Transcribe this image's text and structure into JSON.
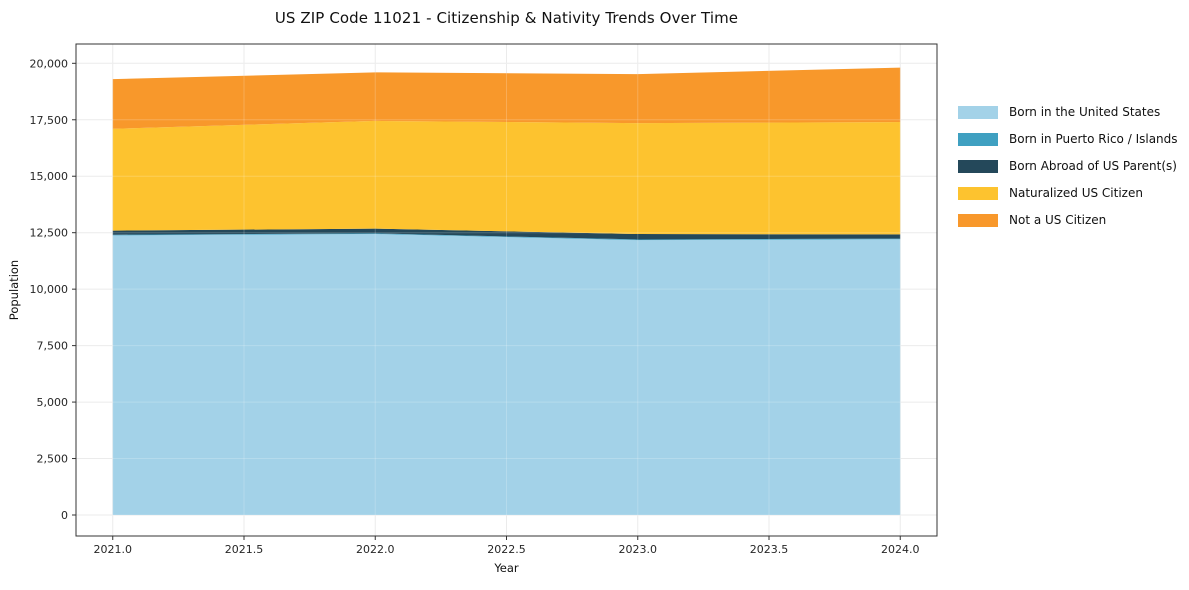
{
  "chart_data": {
    "type": "area",
    "stacked": true,
    "title": "US ZIP Code 11021 - Citizenship & Nativity Trends Over Time",
    "xlabel": "Year",
    "ylabel": "Population",
    "x": [
      2021,
      2022,
      2023,
      2024
    ],
    "series": [
      {
        "name": "Born in the United States",
        "color": "#A3D2E8",
        "values": [
          12380,
          12440,
          12170,
          12210
        ]
      },
      {
        "name": "Born in Puerto Rico / Islands",
        "color": "#3FA0C1",
        "values": [
          30,
          30,
          30,
          30
        ]
      },
      {
        "name": "Born Abroad of US Parent(s)",
        "color": "#24485A",
        "values": [
          180,
          210,
          240,
          185
        ]
      },
      {
        "name": "Naturalized US Citizen",
        "color": "#FDC32F",
        "values": [
          4510,
          4770,
          4910,
          4975
        ]
      },
      {
        "name": "Not a US Citizen",
        "color": "#F8982B",
        "values": [
          2200,
          2150,
          2170,
          2410
        ]
      }
    ],
    "stacked_totals": [
      19300,
      19600,
      19520,
      19810
    ],
    "xticks": [
      2021.0,
      2021.5,
      2022.0,
      2022.5,
      2023.0,
      2023.5,
      2024.0
    ],
    "xtick_labels": [
      "2021.0",
      "2021.5",
      "2022.0",
      "2022.5",
      "2023.0",
      "2023.5",
      "2024.0"
    ],
    "yticks": [
      0,
      2500,
      5000,
      7500,
      10000,
      12500,
      15000,
      17500,
      20000
    ],
    "ytick_labels": [
      "0",
      "2,500",
      "5,000",
      "7,500",
      "10,000",
      "12,500",
      "15,000",
      "17,500",
      "20,000"
    ],
    "xlim": [
      2020.86,
      2024.14
    ],
    "ylim": [
      -930,
      20855
    ],
    "grid": true,
    "legend_position": "right outside"
  }
}
